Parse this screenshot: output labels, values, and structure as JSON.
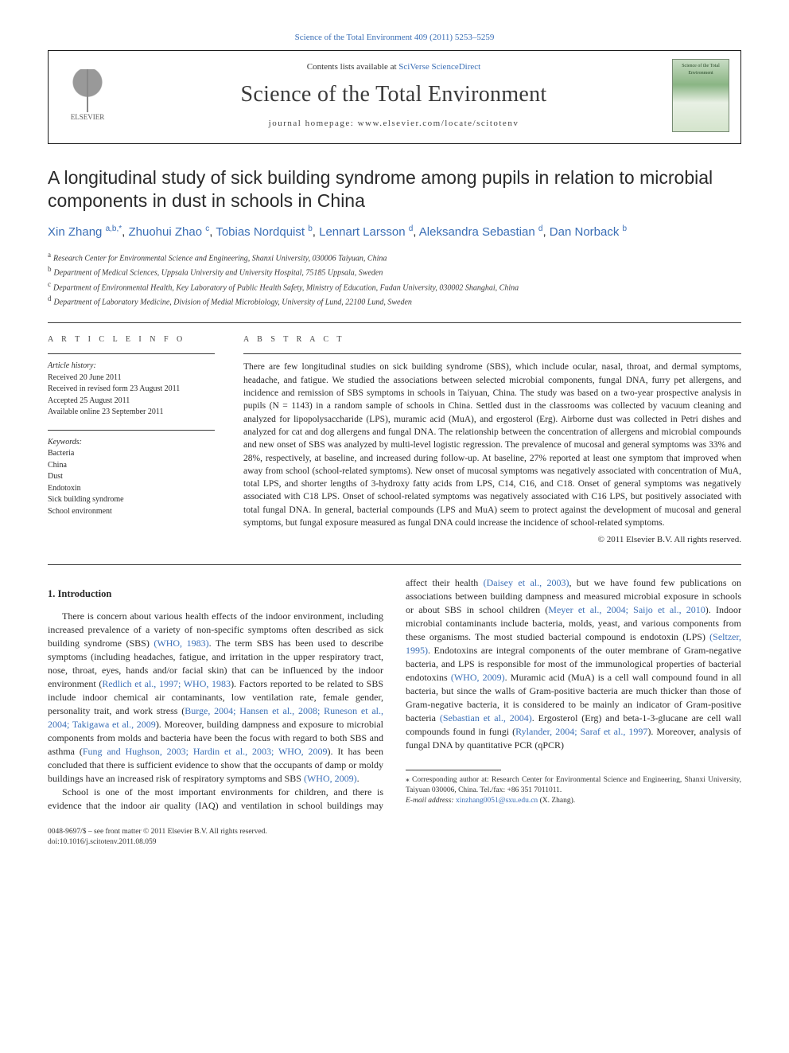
{
  "journal_ref": {
    "prefix": "Science of the Total Environment 409 (2011) 5253–5259",
    "link_label": "Science of the Total Environment 409 (2011) 5253–5259"
  },
  "header": {
    "contents_prefix": "Contents lists available at ",
    "contents_link": "SciVerse ScienceDirect",
    "journal_name": "Science of the Total Environment",
    "homepage_prefix": "journal homepage: ",
    "homepage": "www.elsevier.com/locate/scitotenv",
    "publisher_label": "ELSEVIER",
    "cover_title": "Science of the Total Environment"
  },
  "title": "A longitudinal study of sick building syndrome among pupils in relation to microbial components in dust in schools in China",
  "authors_html": [
    {
      "name": "Xin Zhang",
      "sup": "a,b,*"
    },
    {
      "name": "Zhuohui Zhao",
      "sup": "c"
    },
    {
      "name": "Tobias Nordquist",
      "sup": "b"
    },
    {
      "name": "Lennart Larsson",
      "sup": "d"
    },
    {
      "name": "Aleksandra Sebastian",
      "sup": "d"
    },
    {
      "name": "Dan Norback",
      "sup": "b"
    }
  ],
  "affiliations": [
    {
      "key": "a",
      "text": "Research Center for Environmental Science and Engineering, Shanxi University, 030006 Taiyuan, China"
    },
    {
      "key": "b",
      "text": "Department of Medical Sciences, Uppsala University and University Hospital, 75185 Uppsala, Sweden"
    },
    {
      "key": "c",
      "text": "Department of Environmental Health, Key Laboratory of Public Health Safety, Ministry of Education, Fudan University, 030002 Shanghai, China"
    },
    {
      "key": "d",
      "text": "Department of Laboratory Medicine, Division of Medial Microbiology, University of Lund, 22100 Lund, Sweden"
    }
  ],
  "article_info": {
    "heading": "A R T I C L E   I N F O",
    "history_label": "Article history:",
    "history": [
      "Received 20 June 2011",
      "Received in revised form 23 August 2011",
      "Accepted 25 August 2011",
      "Available online 23 September 2011"
    ],
    "keywords_label": "Keywords:",
    "keywords": [
      "Bacteria",
      "China",
      "Dust",
      "Endotoxin",
      "Sick building syndrome",
      "School environment"
    ]
  },
  "abstract": {
    "heading": "A B S T R A C T",
    "text": "There are few longitudinal studies on sick building syndrome (SBS), which include ocular, nasal, throat, and dermal symptoms, headache, and fatigue. We studied the associations between selected microbial components, fungal DNA, furry pet allergens, and incidence and remission of SBS symptoms in schools in Taiyuan, China. The study was based on a two-year prospective analysis in pupils (N = 1143) in a random sample of schools in China. Settled dust in the classrooms was collected by vacuum cleaning and analyzed for lipopolysaccharide (LPS), muramic acid (MuA), and ergosterol (Erg). Airborne dust was collected in Petri dishes and analyzed for cat and dog allergens and fungal DNA. The relationship between the concentration of allergens and microbial compounds and new onset of SBS was analyzed by multi-level logistic regression. The prevalence of mucosal and general symptoms was 33% and 28%, respectively, at baseline, and increased during follow-up. At baseline, 27% reported at least one symptom that improved when away from school (school-related symptoms). New onset of mucosal symptoms was negatively associated with concentration of MuA, total LPS, and shorter lengths of 3-hydroxy fatty acids from LPS, C14, C16, and C18. Onset of general symptoms was negatively associated with C18 LPS. Onset of school-related symptoms was negatively associated with C16 LPS, but positively associated with total fungal DNA. In general, bacterial compounds (LPS and MuA) seem to protect against the development of mucosal and general symptoms, but fungal exposure measured as fungal DNA could increase the incidence of school-related symptoms.",
    "copyright": "© 2011 Elsevier B.V. All rights reserved."
  },
  "body": {
    "intro_heading": "1. Introduction",
    "p1_pre": "There is concern about various health effects of the indoor environment, including increased prevalence of a variety of non-specific symptoms often described as sick building syndrome (SBS) ",
    "p1_link1": "(WHO, 1983)",
    "p1_mid1": ". The term SBS has been used to describe symptoms (including headaches, fatigue, and irritation in the upper respiratory tract, nose, throat, eyes, hands and/or facial skin) that can be influenced by the indoor environment (",
    "p1_link2": "Redlich et al., 1997; WHO, 1983",
    "p1_mid2": "). Factors reported to be related to SBS include indoor chemical air contaminants, low ventilation rate, female gender, personality trait, and work stress (",
    "p1_link3": "Burge, 2004; Hansen et al., 2008; Runeson et al., 2004; Takigawa et al., 2009",
    "p1_mid3": "). Moreover, building dampness and exposure to microbial components from molds and bacteria have been the focus with regard to both SBS and asthma (",
    "p1_link4": "Fung and Hughson, 2003; Hardin et al., 2003; WHO, 2009",
    "p1_post": "). It has been concluded that there is sufficient evidence to show that the occupants of damp or moldy buildings have an increased risk of respiratory symptoms and SBS ",
    "p1_link5": "(WHO, 2009)",
    "p1_end": ".",
    "p2_pre": "School is one of the most important environments for children, and there is evidence that the indoor air quality (IAQ) and ventilation in school buildings may affect their health ",
    "p2_link1": "(Daisey et al., 2003)",
    "p2_mid1": ", but we have found few publications on associations between building dampness and measured microbial exposure in schools or about SBS in school children (",
    "p2_link2": "Meyer et al., 2004; Saijo et al., 2010",
    "p2_mid2": "). Indoor microbial contaminants include bacteria, molds, yeast, and various components from these organisms. The most studied bacterial compound is endotoxin (LPS) ",
    "p2_link3": "(Seltzer, 1995)",
    "p2_mid3": ". Endotoxins are integral components of the outer membrane of Gram-negative bacteria, and LPS is responsible for most of the immunological properties of bacterial endotoxins ",
    "p2_link4": "(WHO, 2009)",
    "p2_mid4": ". Muramic acid (MuA) is a cell wall compound found in all bacteria, but since the walls of Gram-positive bacteria are much thicker than those of Gram-negative bacteria, it is considered to be mainly an indicator of Gram-positive bacteria ",
    "p2_link5": "(Sebastian et al., 2004)",
    "p2_mid5": ". Ergosterol (Erg) and beta-1-3-glucane are cell wall compounds found in fungi (",
    "p2_link6": "Rylander, 2004; Saraf et al., 1997",
    "p2_post": "). Moreover, analysis of fungal DNA by quantitative PCR (qPCR)"
  },
  "footnotes": {
    "corr_label": "⁎ Corresponding author at: Research Center for Environmental Science and Engineering, Shanxi University, Taiyuan 030006, China. Tel./fax: +86 351 7011011.",
    "email_label": "E-mail address: ",
    "email": "xinzhang0051@sxu.edu.cn",
    "email_suffix": " (X. Zhang)."
  },
  "footer": {
    "left1": "0048-9697/$ – see front matter © 2011 Elsevier B.V. All rights reserved.",
    "left2": "doi:10.1016/j.scitotenv.2011.08.059"
  },
  "colors": {
    "link": "#3b6fb6",
    "text": "#2a2a2a",
    "rule": "#3a3a3a"
  }
}
